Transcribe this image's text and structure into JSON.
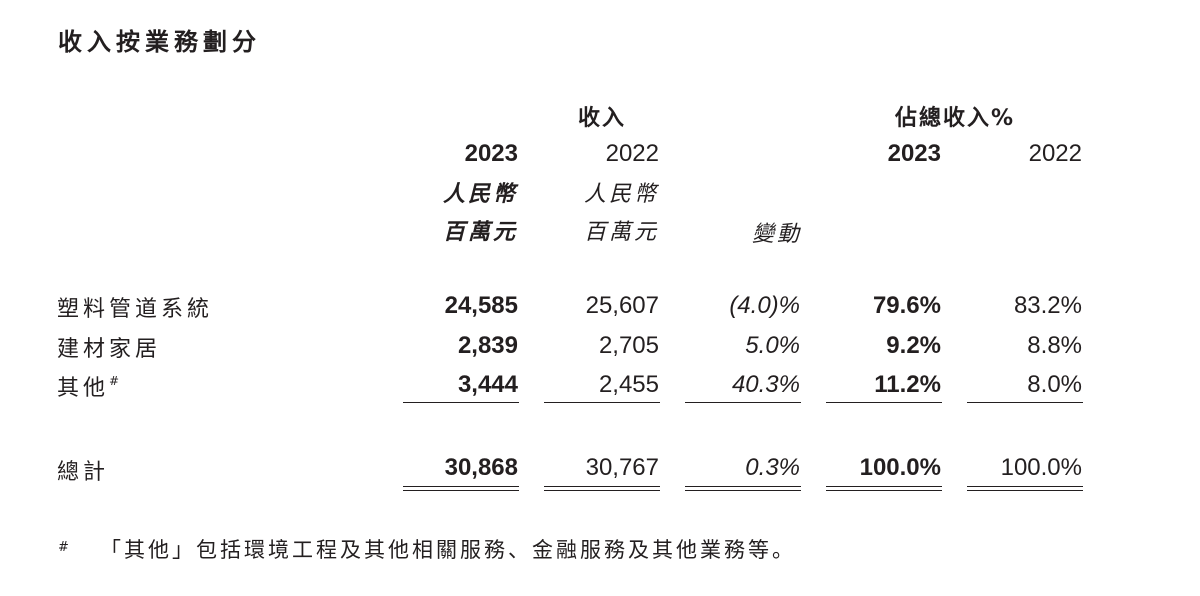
{
  "title": "收入按業務劃分",
  "headers": {
    "revenue_group": "收入",
    "share_group": "佔總收入%",
    "rev_2023_year": "2023",
    "rev_2022_year": "2022",
    "rev_2023_unit1": "人民幣",
    "rev_2023_unit2": "百萬元",
    "rev_2022_unit1": "人民幣",
    "rev_2022_unit2": "百萬元",
    "change": "變動",
    "share_2023_year": "2023",
    "share_2022_year": "2022"
  },
  "rows": [
    {
      "label": "塑料管道系統",
      "rev2023": "24,585",
      "rev2022": "25,607",
      "change": "(4.0)%",
      "share2023": "79.6%",
      "share2022": "83.2%"
    },
    {
      "label": "建材家居",
      "rev2023": "2,839",
      "rev2022": "2,705",
      "change": "5.0%",
      "share2023": "9.2%",
      "share2022": "8.8%"
    },
    {
      "label": "其他",
      "label_mark": "#",
      "rev2023": "3,444",
      "rev2022": "2,455",
      "change": "40.3%",
      "share2023": "11.2%",
      "share2022": "8.0%"
    }
  ],
  "total": {
    "label": "總計",
    "rev2023": "30,868",
    "rev2022": "30,767",
    "change": "0.3%",
    "share2023": "100.0%",
    "share2022": "100.0%"
  },
  "footnote": {
    "mark": "#",
    "text": "「其他」包括環境工程及其他相關服務、金融服務及其他業務等。"
  }
}
